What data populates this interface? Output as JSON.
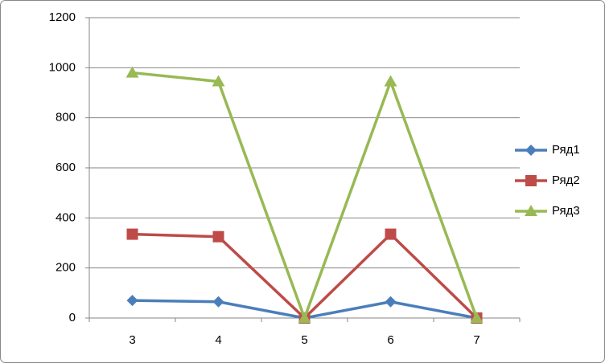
{
  "chart_data": {
    "type": "line",
    "categories": [
      "3",
      "4",
      "5",
      "6",
      "7"
    ],
    "series": [
      {
        "name": "Ряд1",
        "color": "#4a7ebb",
        "marker": "diamond",
        "values": [
          70,
          65,
          0,
          65,
          0
        ]
      },
      {
        "name": "Ряд2",
        "color": "#be4b48",
        "marker": "square",
        "values": [
          335,
          325,
          0,
          335,
          0
        ]
      },
      {
        "name": "Ряд3",
        "color": "#98b954",
        "marker": "triangle",
        "values": [
          980,
          945,
          0,
          945,
          0
        ]
      }
    ],
    "ylim": [
      0,
      1200
    ],
    "yticks": [
      0,
      200,
      400,
      600,
      800,
      1000,
      1200
    ],
    "grid": true,
    "legend": "right"
  }
}
